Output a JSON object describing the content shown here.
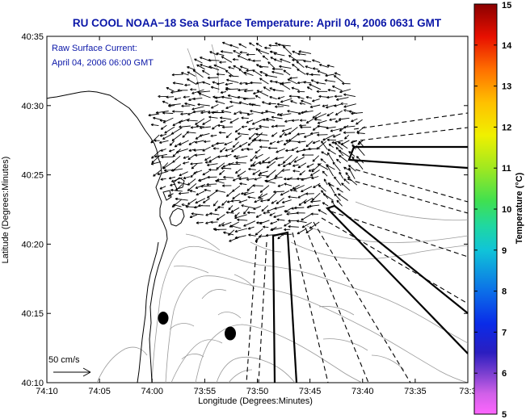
{
  "figure": {
    "title": "RU COOL  NOAA−18  Sea Surface Temperature:  April 04, 2006 0631 GMT",
    "overlay_label": "Raw Surface Current:",
    "overlay_time": "April 04, 2006 06:00 GMT",
    "scale_label": "50 cm/s",
    "x_axis_label": "Longitude (Degrees:Minutes)",
    "y_axis_label": "Latitude (Degrees:Minutes)",
    "x_ticks": [
      "74:10",
      "74:05",
      "74:00",
      "73:55",
      "73:50",
      "73:45",
      "73:40",
      "73:35",
      "73:3"
    ],
    "y_ticks": [
      "40:35",
      "40:30",
      "40:25",
      "40:20",
      "40:15",
      "40:10"
    ],
    "colorbar": {
      "label": "Temperature (°C)",
      "ticks": [
        "15",
        "14",
        "13",
        "12",
        "11",
        "10",
        "9",
        "8",
        "7",
        "6",
        "5"
      ],
      "min": 5,
      "max": 15
    }
  },
  "colors": {
    "title_text": "#0b17a8",
    "coast_line": "#000000",
    "bathymetry": "#9a9a9a",
    "vectors": "#000000"
  }
}
